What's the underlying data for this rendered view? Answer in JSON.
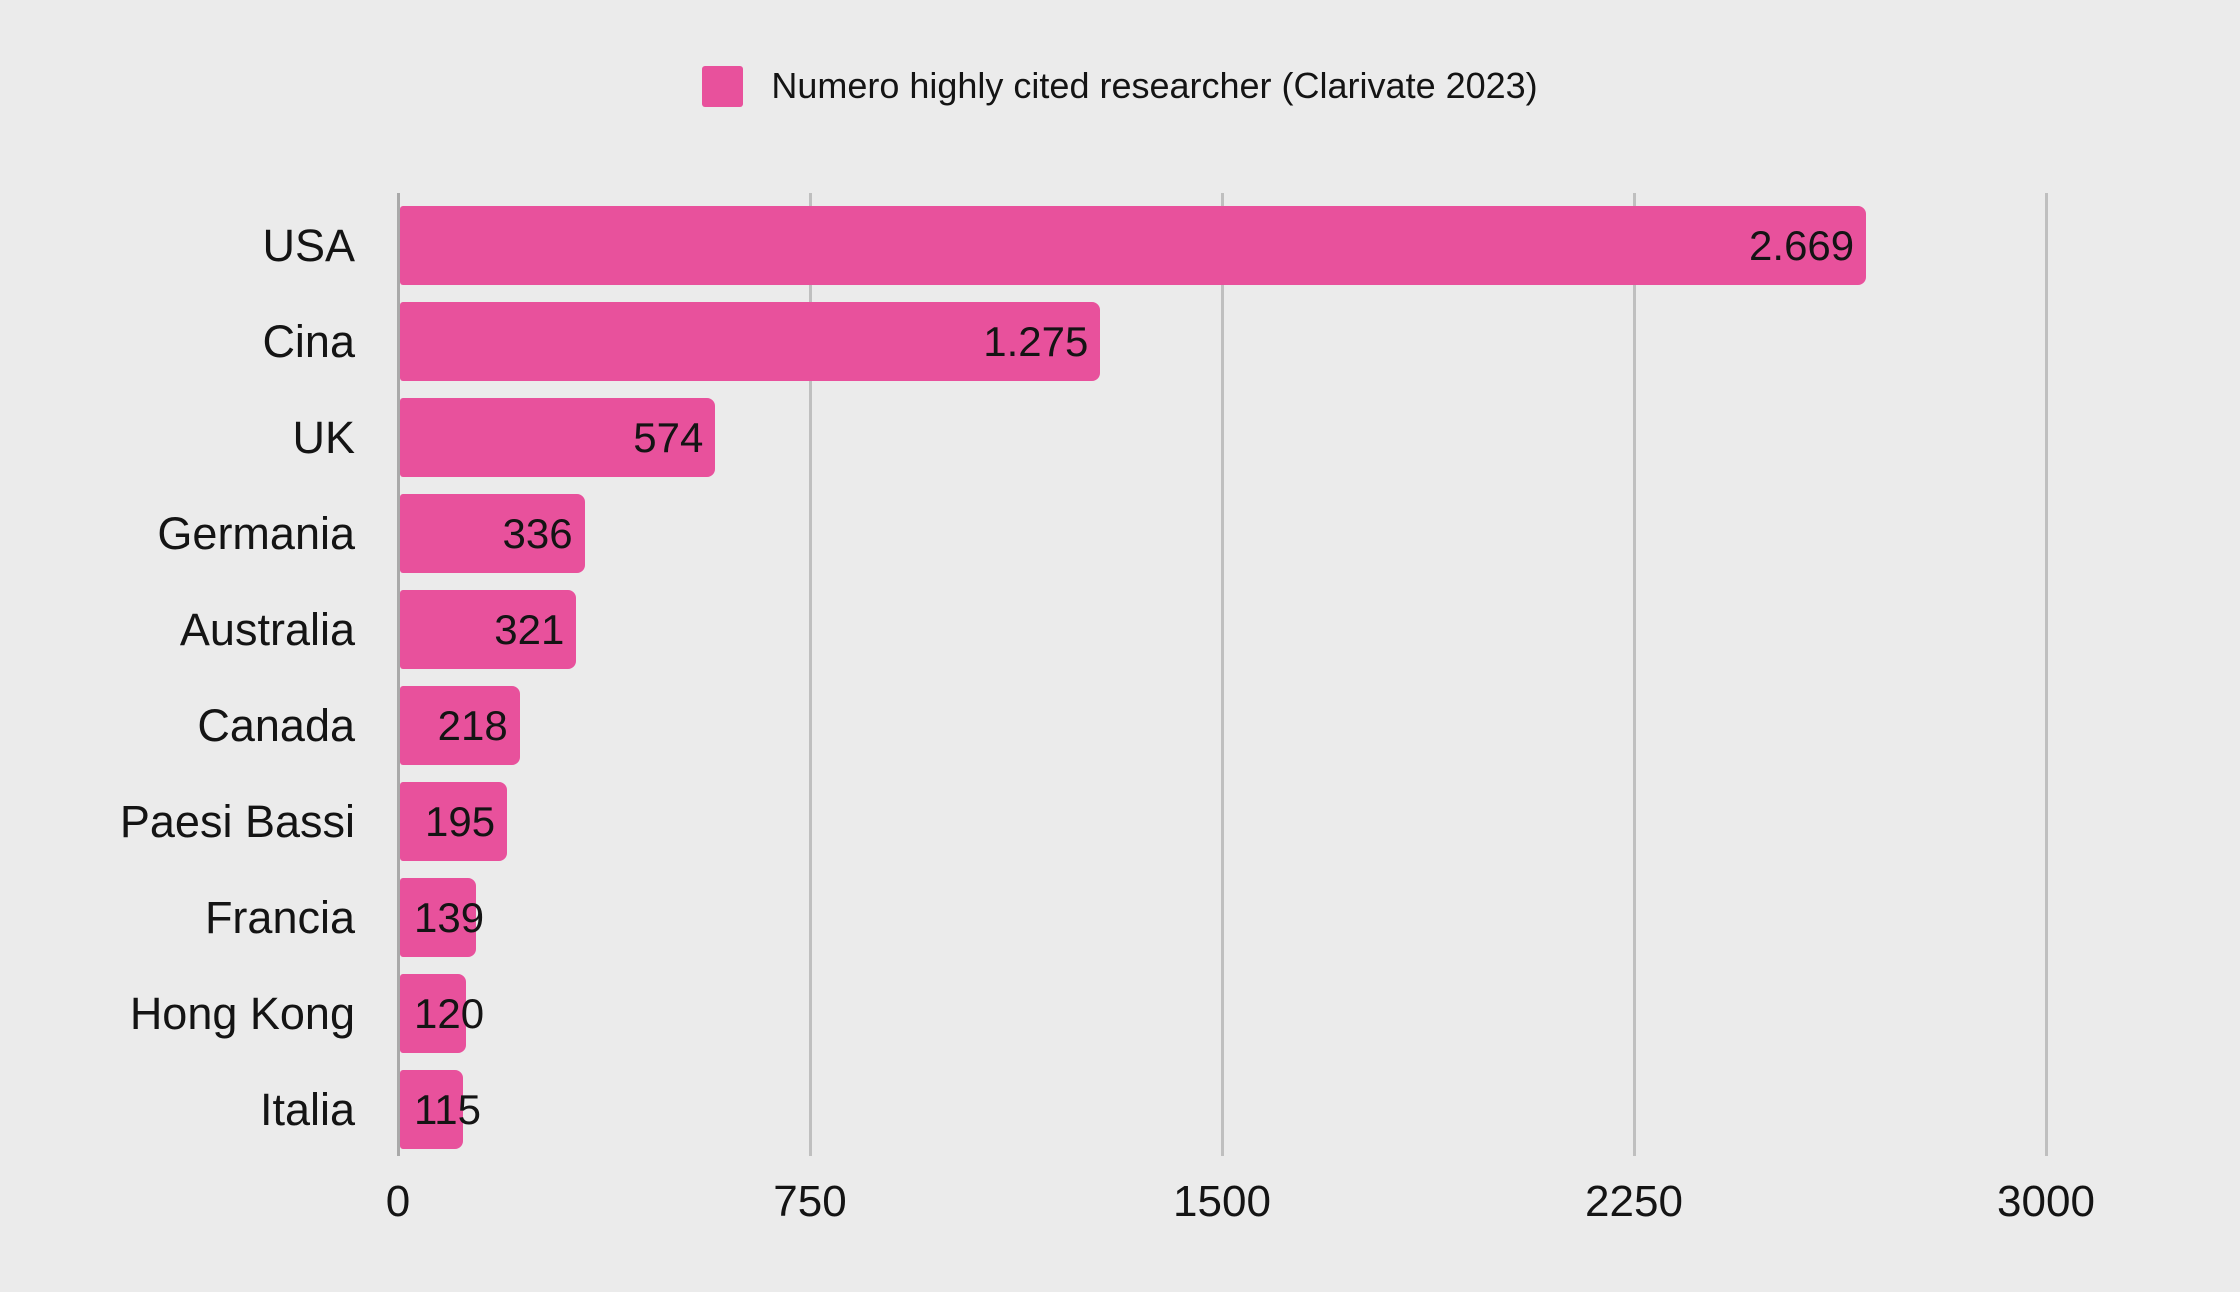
{
  "colors": {
    "background": "#EBEBEB",
    "bar": "#E8519C",
    "text": "#141414",
    "gridline": "#BFBFBF",
    "axis_line": "#A9A9A9"
  },
  "legend": {
    "label": "Numero highly cited researcher (Clarivate 2023)",
    "swatch_color": "#E8519C"
  },
  "chart_data": {
    "type": "bar",
    "orientation": "horizontal",
    "title": "",
    "series_name": "Numero highly cited researcher (Clarivate 2023)",
    "categories": [
      "USA",
      "Cina",
      "UK",
      "Germania",
      "Australia",
      "Canada",
      "Paesi Bassi",
      "Francia",
      "Hong Kong",
      "Italia"
    ],
    "values": [
      2669,
      1275,
      574,
      336,
      321,
      218,
      195,
      139,
      120,
      115
    ],
    "value_labels": [
      "2.669",
      "1.275",
      "574",
      "336",
      "321",
      "218",
      "195",
      "139",
      "120",
      "115"
    ],
    "xlabel": "",
    "ylabel": "",
    "xlim": [
      0,
      3000
    ],
    "x_ticks": [
      0,
      750,
      1500,
      2250,
      3000
    ],
    "x_tick_labels": [
      "0",
      "750",
      "1500",
      "2250",
      "3000"
    ],
    "grid": true,
    "legend_position": "top-center"
  }
}
